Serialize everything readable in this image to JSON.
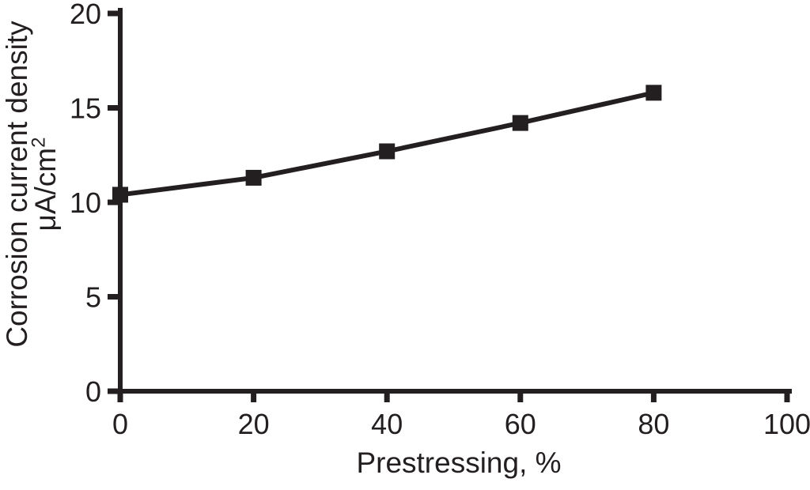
{
  "figure": {
    "background": "#ffffff",
    "ink_color": "#231f20"
  },
  "chart_data": {
    "type": "line",
    "title": "",
    "xlabel": "Prestressing, %",
    "ylabel_line1": "Corrosion current density",
    "ylabel_unit_base": "μA/cm",
    "ylabel_unit_sup": "2",
    "x": [
      0,
      20,
      40,
      60,
      80
    ],
    "series": [
      {
        "name": "corrosion-current-density",
        "values": [
          10.4,
          11.3,
          12.7,
          14.2,
          15.8
        ],
        "color": "#231f20",
        "marker": "square"
      }
    ],
    "xlim": [
      0,
      100
    ],
    "ylim": [
      0,
      20
    ],
    "x_ticks": [
      0,
      20,
      40,
      60,
      80,
      100
    ],
    "y_ticks": [
      0,
      5,
      10,
      15,
      20
    ],
    "grid": false,
    "legend": "none"
  }
}
